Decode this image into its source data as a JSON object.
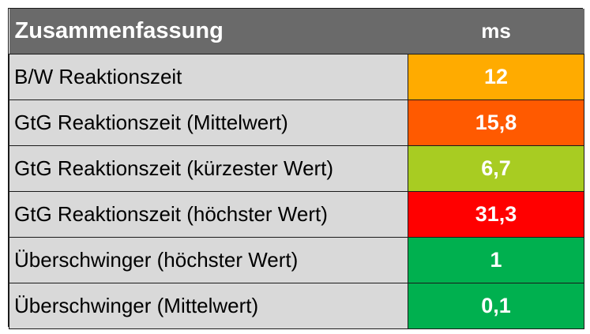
{
  "header": {
    "title": "Zusammenfassung",
    "unit": "ms"
  },
  "rows": [
    {
      "label": "B/W Reaktionszeit",
      "value": "12",
      "color": "#ffab00"
    },
    {
      "label": "GtG Reaktionszeit (Mittelwert)",
      "value": "15,8",
      "color": "#ff5a00"
    },
    {
      "label": "GtG Reaktionszeit (kürzester Wert)",
      "value": "6,7",
      "color": "#a8cc22"
    },
    {
      "label": "GtG Reaktionszeit (höchster Wert)",
      "value": "31,3",
      "color": "#ff0000"
    },
    {
      "label": "Überschwinger (höchster Wert)",
      "value": "1",
      "color": "#00b04f"
    },
    {
      "label": "Überschwinger (Mittelwert)",
      "value": "0,1",
      "color": "#00b04f"
    }
  ]
}
